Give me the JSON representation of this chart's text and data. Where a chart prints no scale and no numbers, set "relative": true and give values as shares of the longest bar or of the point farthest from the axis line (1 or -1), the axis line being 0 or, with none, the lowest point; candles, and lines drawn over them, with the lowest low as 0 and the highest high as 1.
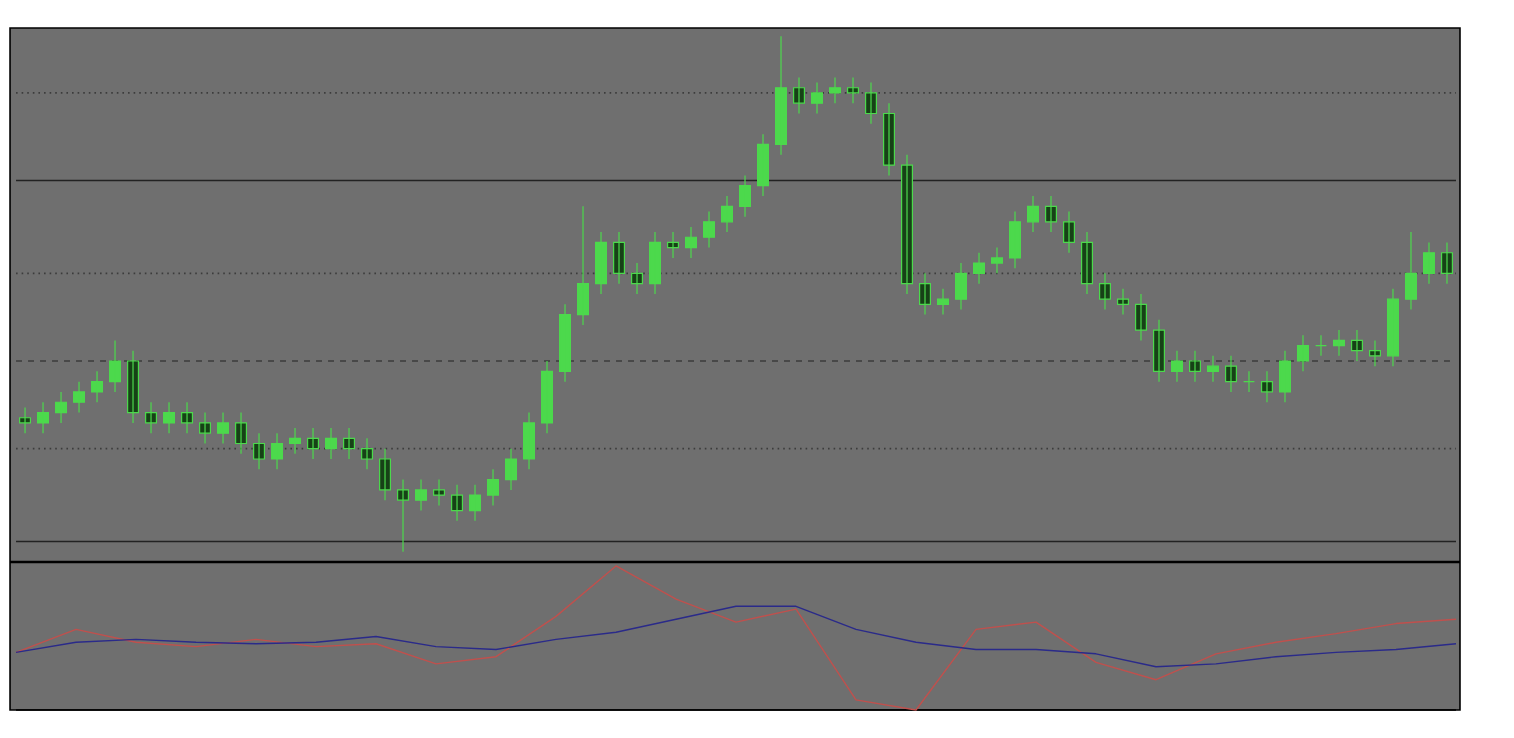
{
  "chart_data": [
    {
      "type": "candlestick",
      "relative": true,
      "color": "#4cd94c",
      "categories": [
        null,
        null,
        null,
        null,
        null,
        null,
        null,
        null,
        null,
        null,
        null,
        null,
        null,
        null,
        null,
        null,
        null,
        null,
        null,
        null,
        null,
        null,
        null,
        null,
        null,
        null,
        null,
        null,
        null,
        null,
        null,
        null,
        null,
        null,
        null,
        null,
        null,
        null,
        null,
        null,
        null,
        null,
        null,
        null,
        null,
        null,
        null,
        null,
        null,
        null,
        null,
        null,
        null,
        null,
        null,
        null,
        null,
        null,
        null,
        null,
        null,
        null,
        null,
        null,
        null,
        null,
        null,
        null,
        null,
        null,
        null,
        null,
        null,
        null,
        null,
        null,
        null,
        null,
        null,
        null
      ],
      "ohlc": [
        [
          0.26,
          0.28,
          0.23,
          0.25
        ],
        [
          0.25,
          0.29,
          0.23,
          0.27
        ],
        [
          0.27,
          0.31,
          0.25,
          0.29
        ],
        [
          0.29,
          0.33,
          0.27,
          0.31
        ],
        [
          0.31,
          0.35,
          0.29,
          0.33
        ],
        [
          0.33,
          0.41,
          0.31,
          0.37
        ],
        [
          0.37,
          0.39,
          0.25,
          0.27
        ],
        [
          0.27,
          0.29,
          0.23,
          0.25
        ],
        [
          0.25,
          0.29,
          0.23,
          0.27
        ],
        [
          0.27,
          0.29,
          0.23,
          0.25
        ],
        [
          0.25,
          0.27,
          0.21,
          0.23
        ],
        [
          0.23,
          0.27,
          0.21,
          0.25
        ],
        [
          0.25,
          0.27,
          0.19,
          0.21
        ],
        [
          0.21,
          0.23,
          0.16,
          0.18
        ],
        [
          0.18,
          0.23,
          0.16,
          0.21
        ],
        [
          0.21,
          0.24,
          0.19,
          0.22
        ],
        [
          0.22,
          0.24,
          0.18,
          0.2
        ],
        [
          0.2,
          0.24,
          0.18,
          0.22
        ],
        [
          0.22,
          0.24,
          0.18,
          0.2
        ],
        [
          0.2,
          0.22,
          0.16,
          0.18
        ],
        [
          0.18,
          0.2,
          0.1,
          0.12
        ],
        [
          0.12,
          0.14,
          0.0,
          0.1
        ],
        [
          0.1,
          0.14,
          0.08,
          0.12
        ],
        [
          0.12,
          0.14,
          0.09,
          0.11
        ],
        [
          0.11,
          0.13,
          0.06,
          0.08
        ],
        [
          0.08,
          0.13,
          0.06,
          0.11
        ],
        [
          0.11,
          0.16,
          0.09,
          0.14
        ],
        [
          0.14,
          0.2,
          0.12,
          0.18
        ],
        [
          0.18,
          0.27,
          0.16,
          0.25
        ],
        [
          0.25,
          0.37,
          0.23,
          0.35
        ],
        [
          0.35,
          0.48,
          0.33,
          0.46
        ],
        [
          0.46,
          0.67,
          0.44,
          0.52
        ],
        [
          0.52,
          0.62,
          0.5,
          0.6
        ],
        [
          0.6,
          0.62,
          0.52,
          0.54
        ],
        [
          0.54,
          0.56,
          0.5,
          0.52
        ],
        [
          0.52,
          0.62,
          0.5,
          0.6
        ],
        [
          0.6,
          0.62,
          0.57,
          0.59
        ],
        [
          0.59,
          0.63,
          0.57,
          0.61
        ],
        [
          0.61,
          0.66,
          0.59,
          0.64
        ],
        [
          0.64,
          0.69,
          0.62,
          0.67
        ],
        [
          0.67,
          0.73,
          0.65,
          0.71
        ],
        [
          0.71,
          0.81,
          0.69,
          0.79
        ],
        [
          0.79,
          1.0,
          0.77,
          0.9
        ],
        [
          0.9,
          0.92,
          0.85,
          0.87
        ],
        [
          0.87,
          0.91,
          0.85,
          0.89
        ],
        [
          0.89,
          0.92,
          0.87,
          0.9
        ],
        [
          0.9,
          0.92,
          0.87,
          0.89
        ],
        [
          0.89,
          0.91,
          0.83,
          0.85
        ],
        [
          0.85,
          0.87,
          0.73,
          0.75
        ],
        [
          0.75,
          0.77,
          0.5,
          0.52
        ],
        [
          0.52,
          0.54,
          0.46,
          0.48
        ],
        [
          0.48,
          0.51,
          0.46,
          0.49
        ],
        [
          0.49,
          0.56,
          0.47,
          0.54
        ],
        [
          0.54,
          0.58,
          0.52,
          0.56
        ],
        [
          0.56,
          0.59,
          0.54,
          0.57
        ],
        [
          0.57,
          0.66,
          0.55,
          0.64
        ],
        [
          0.64,
          0.69,
          0.62,
          0.67
        ],
        [
          0.67,
          0.69,
          0.62,
          0.64
        ],
        [
          0.64,
          0.66,
          0.58,
          0.6
        ],
        [
          0.6,
          0.62,
          0.5,
          0.52
        ],
        [
          0.52,
          0.54,
          0.47,
          0.49
        ],
        [
          0.49,
          0.51,
          0.46,
          0.48
        ],
        [
          0.48,
          0.5,
          0.41,
          0.43
        ],
        [
          0.43,
          0.45,
          0.33,
          0.35
        ],
        [
          0.35,
          0.39,
          0.33,
          0.37
        ],
        [
          0.37,
          0.39,
          0.33,
          0.35
        ],
        [
          0.35,
          0.38,
          0.33,
          0.36
        ],
        [
          0.36,
          0.38,
          0.31,
          0.33
        ],
        [
          0.33,
          0.35,
          0.31,
          0.33
        ],
        [
          0.33,
          0.35,
          0.29,
          0.31
        ],
        [
          0.31,
          0.39,
          0.29,
          0.37
        ],
        [
          0.37,
          0.42,
          0.35,
          0.4
        ],
        [
          0.4,
          0.42,
          0.38,
          0.4
        ],
        [
          0.4,
          0.43,
          0.38,
          0.41
        ],
        [
          0.41,
          0.43,
          0.37,
          0.39
        ],
        [
          0.39,
          0.41,
          0.36,
          0.38
        ],
        [
          0.38,
          0.51,
          0.36,
          0.49
        ],
        [
          0.49,
          0.62,
          0.47,
          0.54
        ],
        [
          0.54,
          0.6,
          0.52,
          0.58
        ],
        [
          0.58,
          0.6,
          0.52,
          0.54
        ]
      ],
      "ref_lines": [
        {
          "axis": "y",
          "value": 0.89,
          "color": "#3c3c3c",
          "line_style": "dotted"
        },
        {
          "axis": "y",
          "value": 0.72,
          "color": "#222222",
          "line_style": "solid"
        },
        {
          "axis": "y",
          "value": 0.54,
          "color": "#3c3c3c",
          "line_style": "dotted"
        },
        {
          "axis": "y",
          "value": 0.37,
          "color": "#3c3c3c",
          "line_style": "dashed"
        },
        {
          "axis": "y",
          "value": 0.2,
          "color": "#3c3c3c",
          "line_style": "dotted"
        },
        {
          "axis": "y",
          "value": 0.02,
          "color": "#222222",
          "line_style": "solid"
        }
      ]
    },
    {
      "type": "line",
      "relative": true,
      "line_style": "solid",
      "categories": [
        null,
        null,
        null,
        null,
        null,
        null,
        null,
        null,
        null,
        null,
        null,
        null,
        null,
        null,
        null,
        null,
        null,
        null,
        null,
        null,
        null,
        null,
        null,
        null,
        null
      ],
      "series": [
        {
          "color": "#c0504d",
          "values": [
            0.4,
            0.56,
            0.47,
            0.44,
            0.49,
            0.44,
            0.46,
            0.32,
            0.37,
            0.65,
            1.0,
            0.77,
            0.61,
            0.7,
            0.07,
            0.0,
            0.56,
            0.61,
            0.33,
            0.21,
            0.39,
            0.47,
            0.53,
            0.6,
            0.63
          ]
        },
        {
          "color": "#2a2a8a",
          "values": [
            0.4,
            0.47,
            0.49,
            0.47,
            0.46,
            0.47,
            0.51,
            0.44,
            0.42,
            0.49,
            0.54,
            0.63,
            0.72,
            0.72,
            0.56,
            0.47,
            0.42,
            0.42,
            0.39,
            0.3,
            0.32,
            0.37,
            0.4,
            0.42,
            0.46
          ]
        }
      ]
    }
  ]
}
